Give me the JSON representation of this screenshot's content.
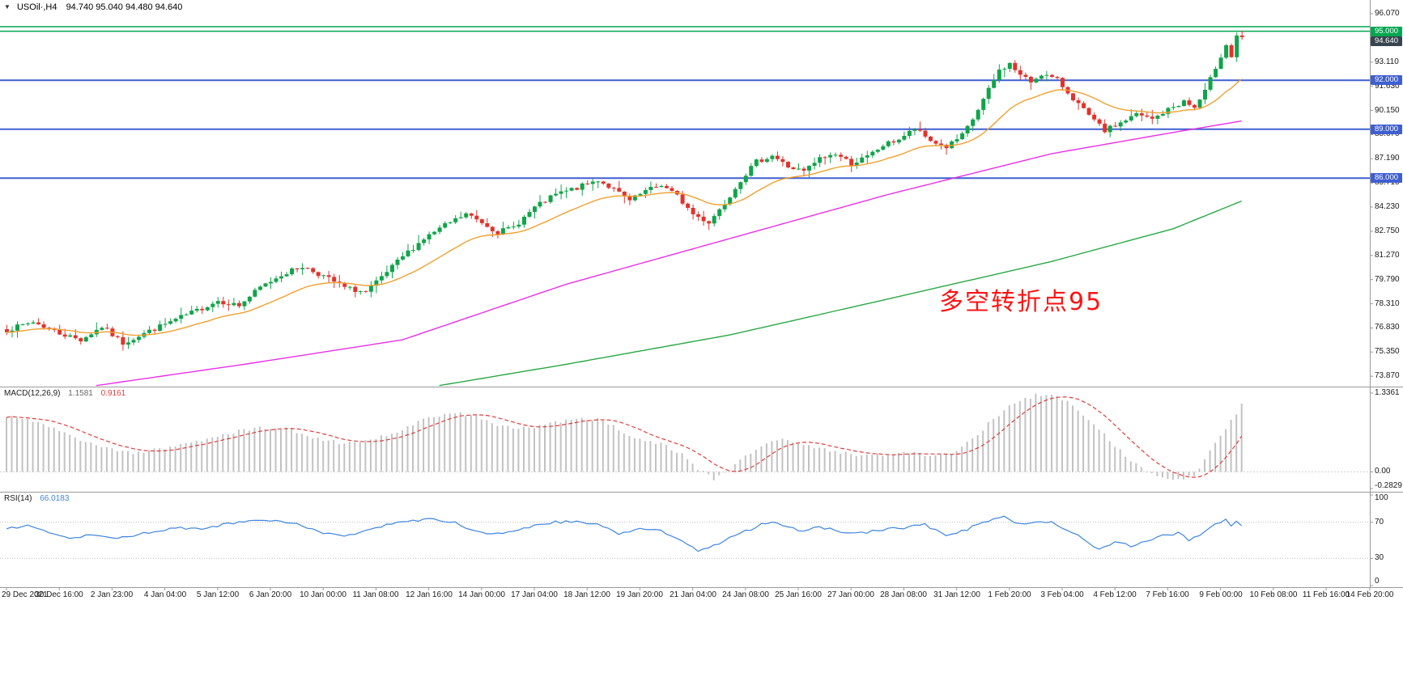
{
  "header": {
    "dropdown_glyph": "▼",
    "symbol_title": "USOil·,H4",
    "ohlc_text": "94.740 95.040 94.480 94.640"
  },
  "chart_data": {
    "type": "candlestick",
    "title": "USOil·,H4",
    "symbol": "USOil",
    "timeframe": "H4",
    "ohlc_current": {
      "open": 94.74,
      "high": 95.04,
      "low": 94.48,
      "close": 94.64
    },
    "y_axis": {
      "ticks": [
        96.07,
        93.11,
        91.63,
        90.15,
        88.67,
        87.19,
        85.71,
        84.23,
        82.75,
        81.27,
        79.79,
        78.31,
        76.83,
        75.35,
        73.87
      ],
      "visible_range": [
        73.24,
        96.91
      ]
    },
    "x_axis": {
      "candles_per_label": 10,
      "labels": [
        "29 Dec 2021",
        "30 Dec 16:00",
        "2 Jan 23:00",
        "4 Jan 04:00",
        "5 Jan 12:00",
        "6 Jan 20:00",
        "10 Jan 00:00",
        "11 Jan 08:00",
        "12 Jan 16:00",
        "14 Jan 00:00",
        "17 Jan 04:00",
        "18 Jan 12:00",
        "19 Jan 20:00",
        "21 Jan 04:00",
        "24 Jan 08:00",
        "25 Jan 16:00",
        "27 Jan 00:00",
        "28 Jan 08:00",
        "31 Jan 12:00",
        "1 Feb 20:00",
        "3 Feb 04:00",
        "4 Feb 12:00",
        "7 Feb 16:00",
        "9 Feb 00:00",
        "10 Feb 08:00",
        "11 Feb 16:00",
        "14 Feb 20:00"
      ]
    },
    "horizontal_lines": [
      {
        "price": 95.28,
        "color": "#00a650",
        "width": 1.5
      },
      {
        "price": 95.0,
        "color": "#00a650",
        "width": 1.5,
        "badge": "95.000"
      },
      {
        "price": 92.0,
        "color": "#3f5fd0",
        "width": 2,
        "badge": "92.000"
      },
      {
        "price": 89.0,
        "color": "#3f5fd0",
        "width": 2,
        "badge": "89.000"
      },
      {
        "price": 86.0,
        "color": "#3f5fd0",
        "width": 2,
        "badge": "86.000"
      }
    ],
    "current_price_badge": {
      "label": "94.640",
      "value": 94.64,
      "bg": "#38454f"
    },
    "candles": {
      "count": 235,
      "up_color": "#11a44a",
      "down_color": "#e0342c",
      "close_anchors": [
        [
          0,
          76.7
        ],
        [
          5,
          77.2
        ],
        [
          10,
          76.5
        ],
        [
          14,
          76.1
        ],
        [
          18,
          76.9
        ],
        [
          22,
          75.9
        ],
        [
          26,
          76.5
        ],
        [
          31,
          77.2
        ],
        [
          36,
          77.9
        ],
        [
          40,
          78.5
        ],
        [
          44,
          78.2
        ],
        [
          48,
          79.3
        ],
        [
          52,
          80.1
        ],
        [
          56,
          80.6
        ],
        [
          60,
          80.0
        ],
        [
          64,
          79.3
        ],
        [
          68,
          79.0
        ],
        [
          71,
          79.9
        ],
        [
          75,
          81.2
        ],
        [
          79,
          82.3
        ],
        [
          83,
          83.1
        ],
        [
          87,
          83.8
        ],
        [
          90,
          83.3
        ],
        [
          93,
          82.7
        ],
        [
          96,
          83.0
        ],
        [
          100,
          84.2
        ],
        [
          104,
          85.0
        ],
        [
          108,
          85.4
        ],
        [
          112,
          85.9
        ],
        [
          115,
          85.3
        ],
        [
          118,
          84.6
        ],
        [
          121,
          85.2
        ],
        [
          124,
          85.6
        ],
        [
          127,
          84.9
        ],
        [
          130,
          83.8
        ],
        [
          133,
          83.3
        ],
        [
          136,
          84.5
        ],
        [
          139,
          85.9
        ],
        [
          142,
          87.0
        ],
        [
          145,
          87.4
        ],
        [
          148,
          86.7
        ],
        [
          151,
          86.4
        ],
        [
          154,
          87.2
        ],
        [
          157,
          87.5
        ],
        [
          160,
          86.9
        ],
        [
          163,
          87.3
        ],
        [
          166,
          88.0
        ],
        [
          169,
          88.4
        ],
        [
          172,
          89.0
        ],
        [
          175,
          88.3
        ],
        [
          178,
          87.9
        ],
        [
          181,
          88.6
        ],
        [
          183,
          89.6
        ],
        [
          185,
          90.8
        ],
        [
          187,
          92.0
        ],
        [
          188,
          92.6
        ],
        [
          190,
          93.0
        ],
        [
          192,
          92.3
        ],
        [
          194,
          91.9
        ],
        [
          196,
          92.4
        ],
        [
          199,
          92.0
        ],
        [
          202,
          90.9
        ],
        [
          205,
          89.8
        ],
        [
          208,
          88.9
        ],
        [
          211,
          89.4
        ],
        [
          214,
          89.9
        ],
        [
          217,
          89.6
        ],
        [
          220,
          90.2
        ],
        [
          223,
          90.7
        ],
        [
          225,
          90.3
        ],
        [
          227,
          91.3
        ],
        [
          229,
          92.8
        ],
        [
          230,
          93.5
        ],
        [
          231,
          94.2
        ],
        [
          232,
          93.4
        ],
        [
          233,
          94.74
        ],
        [
          234,
          94.64
        ]
      ]
    },
    "moving_averages": [
      {
        "name": "ma-slow-line",
        "color": "#2aa845",
        "anchors": [
          [
            60,
            72.2
          ],
          [
            82,
            73.3
          ],
          [
            106,
            74.6
          ],
          [
            137,
            76.4
          ],
          [
            167,
            78.6
          ],
          [
            198,
            80.9
          ],
          [
            221,
            82.9
          ],
          [
            234,
            84.6
          ]
        ]
      },
      {
        "name": "ma-mid-line",
        "color": "#e632e6",
        "anchors": [
          [
            0,
            72.6
          ],
          [
            17,
            73.3
          ],
          [
            45,
            74.6
          ],
          [
            75,
            76.1
          ],
          [
            106,
            79.5
          ],
          [
            137,
            82.3
          ],
          [
            167,
            85.0
          ],
          [
            198,
            87.5
          ],
          [
            221,
            88.8
          ],
          [
            234,
            89.5
          ]
        ]
      },
      {
        "name": "ma-fast-line",
        "color": "#f0a030",
        "period": 20
      }
    ],
    "indicators": {
      "macd": {
        "label": "MACD(12,26,9)",
        "value_main": "1.1581",
        "value_signal": "0.9161",
        "axis_ticks": [
          "1.3361",
          "0.00",
          "-0.2829"
        ],
        "histogram_color": "#c2c2c2",
        "signal_color": "#e23b3b",
        "anchors": [
          [
            0,
            0.95
          ],
          [
            6,
            0.85
          ],
          [
            12,
            0.62
          ],
          [
            18,
            0.42
          ],
          [
            24,
            0.32
          ],
          [
            30,
            0.4
          ],
          [
            36,
            0.52
          ],
          [
            42,
            0.66
          ],
          [
            48,
            0.75
          ],
          [
            54,
            0.72
          ],
          [
            58,
            0.58
          ],
          [
            63,
            0.5
          ],
          [
            68,
            0.52
          ],
          [
            74,
            0.68
          ],
          [
            79,
            0.88
          ],
          [
            84,
            1.0
          ],
          [
            89,
            0.95
          ],
          [
            93,
            0.8
          ],
          [
            97,
            0.72
          ],
          [
            102,
            0.8
          ],
          [
            107,
            0.88
          ],
          [
            112,
            0.9
          ],
          [
            116,
            0.72
          ],
          [
            120,
            0.55
          ],
          [
            124,
            0.48
          ],
          [
            128,
            0.3
          ],
          [
            131,
            0.05
          ],
          [
            134,
            -0.12
          ],
          [
            137,
            0.02
          ],
          [
            140,
            0.28
          ],
          [
            144,
            0.5
          ],
          [
            147,
            0.56
          ],
          [
            151,
            0.45
          ],
          [
            155,
            0.38
          ],
          [
            159,
            0.32
          ],
          [
            163,
            0.28
          ],
          [
            167,
            0.3
          ],
          [
            171,
            0.32
          ],
          [
            175,
            0.28
          ],
          [
            179,
            0.3
          ],
          [
            183,
            0.55
          ],
          [
            187,
            0.9
          ],
          [
            191,
            1.18
          ],
          [
            195,
            1.3
          ],
          [
            198,
            1.33
          ],
          [
            202,
            1.15
          ],
          [
            206,
            0.8
          ],
          [
            210,
            0.45
          ],
          [
            213,
            0.2
          ],
          [
            216,
            0.02
          ],
          [
            219,
            -0.12
          ],
          [
            222,
            -0.15
          ],
          [
            225,
            -0.05
          ],
          [
            228,
            0.35
          ],
          [
            231,
            0.75
          ],
          [
            233,
            1.0
          ],
          [
            234,
            1.16
          ]
        ]
      },
      "rsi": {
        "label": "RSI(14)",
        "value": "66.0183",
        "axis_ticks": [
          "100",
          "70",
          "30",
          "0"
        ],
        "levels": [
          70,
          30
        ],
        "color": "#3d85dd",
        "anchors": [
          [
            0,
            62
          ],
          [
            4,
            66
          ],
          [
            8,
            59
          ],
          [
            12,
            52
          ],
          [
            16,
            57
          ],
          [
            20,
            52
          ],
          [
            24,
            55
          ],
          [
            28,
            60
          ],
          [
            32,
            64
          ],
          [
            36,
            62
          ],
          [
            40,
            66
          ],
          [
            44,
            70
          ],
          [
            48,
            72
          ],
          [
            52,
            71
          ],
          [
            56,
            66
          ],
          [
            60,
            58
          ],
          [
            64,
            55
          ],
          [
            68,
            60
          ],
          [
            72,
            67
          ],
          [
            76,
            71
          ],
          [
            80,
            73
          ],
          [
            84,
            71
          ],
          [
            88,
            62
          ],
          [
            92,
            57
          ],
          [
            96,
            60
          ],
          [
            100,
            66
          ],
          [
            104,
            70
          ],
          [
            108,
            71
          ],
          [
            112,
            68
          ],
          [
            116,
            57
          ],
          [
            120,
            62
          ],
          [
            124,
            60
          ],
          [
            128,
            50
          ],
          [
            131,
            38
          ],
          [
            134,
            44
          ],
          [
            137,
            52
          ],
          [
            140,
            60
          ],
          [
            143,
            67
          ],
          [
            146,
            70
          ],
          [
            150,
            60
          ],
          [
            154,
            65
          ],
          [
            158,
            60
          ],
          [
            162,
            58
          ],
          [
            166,
            62
          ],
          [
            170,
            64
          ],
          [
            174,
            67
          ],
          [
            178,
            56
          ],
          [
            182,
            62
          ],
          [
            186,
            72
          ],
          [
            189,
            76
          ],
          [
            192,
            68
          ],
          [
            195,
            70
          ],
          [
            198,
            70
          ],
          [
            201,
            62
          ],
          [
            204,
            52
          ],
          [
            207,
            40
          ],
          [
            210,
            48
          ],
          [
            213,
            44
          ],
          [
            216,
            50
          ],
          [
            219,
            55
          ],
          [
            222,
            58
          ],
          [
            224,
            50
          ],
          [
            226,
            56
          ],
          [
            229,
            68
          ],
          [
            231,
            73
          ],
          [
            232,
            66
          ],
          [
            233,
            72
          ],
          [
            234,
            66
          ]
        ]
      }
    },
    "annotation": {
      "text": "多空转折点95",
      "color": "#fe1414"
    }
  }
}
